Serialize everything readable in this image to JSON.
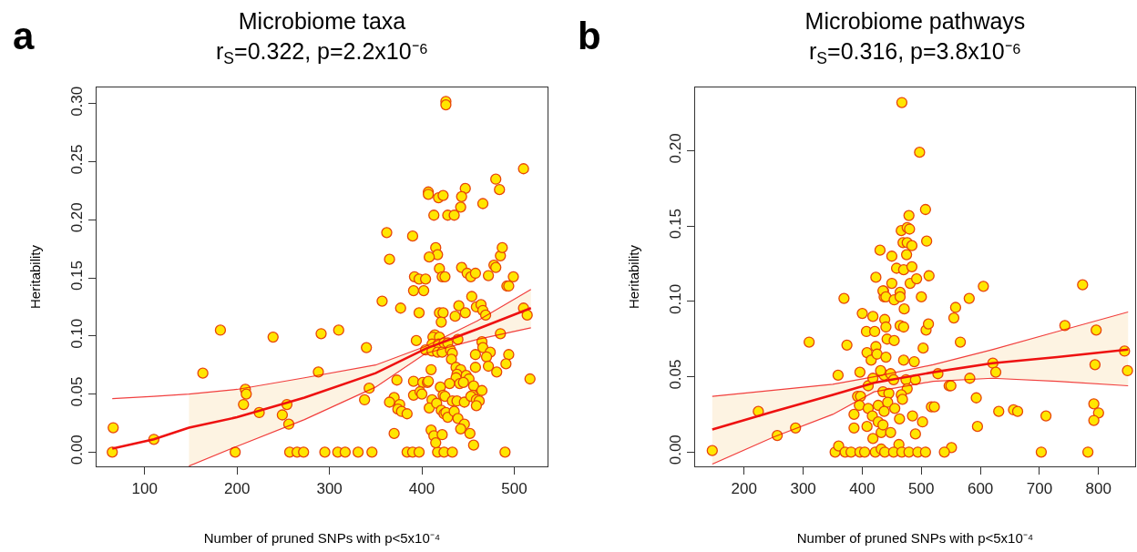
{
  "chart_data": [
    {
      "type": "scatter",
      "title": "Microbiome taxa",
      "subtitle": "r$_{S}$=0.322, p=2.2x10⁻⁶",
      "xlabel": "Number of pruned SNPs with p<5x10⁻⁴",
      "ylabel": "Heritability",
      "annotations": [
        "a"
      ],
      "xlim": [
        48,
        536
      ],
      "xticks": [
        100,
        200,
        300,
        400,
        500
      ],
      "ylim": [
        -0.0123,
        0.314
      ],
      "yticks": [
        {
          "value": 0,
          "label": "0.00"
        },
        {
          "value": 0.05,
          "label": "0.05"
        },
        {
          "value": 0.1,
          "label": "0.10"
        },
        {
          "value": 0.15,
          "label": "0.15"
        },
        {
          "value": 0.2,
          "label": "0.20"
        },
        {
          "value": 0.25,
          "label": "0.25"
        },
        {
          "value": 0.3,
          "label": "0.30"
        }
      ],
      "series": [
        {
          "marker": "circle",
          "color": "#ffe600",
          "x": [
            65,
            66,
            110,
            163,
            182,
            198,
            209,
            210,
            207,
            224,
            239,
            249,
            254,
            256,
            257,
            265,
            272,
            295,
            309,
            317,
            331,
            346,
            384,
            390,
            397,
            417,
            424,
            433,
            490,
            426,
            426,
            510,
            480,
            484,
            407,
            407,
            418,
            423,
            447,
            443,
            442,
            466,
            413,
            428,
            435,
            362,
            390,
            365,
            415,
            417,
            408,
            419,
            422,
            425,
            443,
            449,
            453,
            458,
            472,
            478,
            480,
            485,
            487,
            392,
            397,
            404,
            391,
            402,
            492,
            494,
            499,
            357,
            377,
            397,
            419,
            423,
            421,
            440,
            436,
            447,
            454,
            459,
            464,
            466,
            469,
            510,
            514,
            291,
            310,
            340,
            394,
            414,
            412,
            419,
            411,
            418,
            424,
            428,
            404,
            411,
            417,
            422,
            431,
            433,
            439,
            432,
            465,
            466,
            474,
            470,
            472,
            485,
            458,
            494,
            491,
            481,
            288,
            410,
            437,
            442,
            438,
            437,
            448,
            451,
            458,
            373,
            391,
            401,
            406,
            407,
            430,
            441,
            445,
            456,
            455,
            420,
            465,
            517,
            343,
            338,
            370,
            365,
            376,
            374,
            378,
            384,
            391,
            398,
            400,
            411,
            408,
            416,
            423,
            425,
            433,
            438,
            446,
            453,
            459,
            462,
            459,
            421,
            424,
            426,
            428,
            435,
            439,
            446,
            442,
            452,
            410,
            413,
            415,
            422,
            370,
            456
          ],
          "values": [
            0,
            0.021,
            0.011,
            0.068,
            0.105,
            0,
            0.054,
            0.05,
            0.041,
            0.034,
            0.099,
            0.032,
            0.041,
            0.024,
            0,
            0,
            0,
            0,
            0,
            0,
            0,
            0,
            0,
            0,
            0,
            0,
            0,
            0,
            0,
            0.302,
            0.299,
            0.244,
            0.235,
            0.226,
            0.224,
            0.222,
            0.219,
            0.221,
            0.227,
            0.22,
            0.211,
            0.214,
            0.204,
            0.204,
            0.204,
            0.189,
            0.186,
            0.166,
            0.176,
            0.17,
            0.168,
            0.158,
            0.151,
            0.151,
            0.159,
            0.154,
            0.151,
            0.154,
            0.152,
            0.161,
            0.159,
            0.169,
            0.176,
            0.151,
            0.149,
            0.149,
            0.139,
            0.139,
            0.143,
            0.143,
            0.151,
            0.13,
            0.124,
            0.12,
            0.12,
            0.12,
            0.112,
            0.126,
            0.117,
            0.12,
            0.134,
            0.125,
            0.127,
            0.122,
            0.118,
            0.124,
            0.118,
            0.102,
            0.105,
            0.09,
            0.096,
            0.101,
            0.099,
            0.099,
            0.093,
            0.093,
            0.094,
            0.094,
            0.088,
            0.087,
            0.086,
            0.086,
            0.088,
            0.085,
            0.097,
            0.08,
            0.095,
            0.09,
            0.086,
            0.082,
            0.074,
            0.102,
            0.084,
            0.084,
            0.076,
            0.069,
            0.069,
            0.071,
            0.073,
            0.071,
            0.067,
            0.064,
            0.066,
            0.063,
            0.073,
            0.062,
            0.061,
            0.06,
            0.06,
            0.061,
            0.059,
            0.059,
            0.06,
            0.057,
            0.049,
            0.056,
            0.053,
            0.063,
            0.055,
            0.045,
            0.047,
            0.043,
            0.041,
            0.037,
            0.035,
            0.033,
            0.049,
            0.052,
            0.05,
            0.045,
            0.038,
            0.042,
            0.049,
            0.048,
            0.044,
            0.044,
            0.043,
            0.048,
            0.045,
            0.044,
            0.04,
            0.036,
            0.033,
            0.034,
            0.03,
            0.035,
            0.029,
            0.024,
            0.02,
            0.016,
            0.019,
            0.014,
            0.008,
            0.015,
            0.016,
            0.006
          ]
        },
        {
          "type": "line",
          "color": "#ee1111",
          "x": [
            65,
            110,
            148,
            200,
            273,
            350,
            404,
            460,
            518
          ],
          "values": [
            0.046,
            0.048,
            0.05,
            0.054,
            0.064,
            0.075,
            0.091,
            0.113,
            0.14
          ]
        },
        {
          "type": "line",
          "color": "#ee1111",
          "x": [
            148,
            200,
            273,
            350,
            404,
            460,
            518
          ],
          "values": [
            -0.012,
            0.005,
            0.028,
            0.056,
            0.085,
            0.097,
            0.107
          ]
        },
        {
          "type": "line",
          "color": "#ee1111",
          "x": [
            65,
            110,
            148,
            200,
            273,
            350,
            404,
            460,
            518
          ],
          "values": [
            0.003,
            0.011,
            0.021,
            0.03,
            0.047,
            0.068,
            0.089,
            0.106,
            0.124
          ],
          "lower": [
            null,
            null,
            -0.012,
            0.005,
            0.028,
            0.056,
            0.085,
            0.097,
            0.107
          ],
          "upper": [
            null,
            null,
            0.05,
            0.054,
            0.064,
            0.075,
            0.091,
            0.113,
            0.14
          ]
        }
      ]
    },
    {
      "type": "scatter",
      "title": "Microbiome pathways",
      "subtitle": "r$_{S}$=0.316, p=3.8x10⁻⁶",
      "xlabel": "Number of pruned SNPs with p<5x10⁻⁴",
      "ylabel": "Heritability",
      "annotations": [
        "b"
      ],
      "xlim": [
        117,
        862
      ],
      "xticks": [
        200,
        300,
        400,
        500,
        600,
        700,
        800
      ],
      "ylim": [
        -0.0095,
        0.242
      ],
      "yticks": [
        {
          "value": 0,
          "label": "0.00"
        },
        {
          "value": 0.05,
          "label": "0.05"
        },
        {
          "value": 0.1,
          "label": "0.10"
        },
        {
          "value": 0.15,
          "label": "0.15"
        },
        {
          "value": 0.2,
          "label": "0.20"
        }
      ],
      "series": [
        {
          "marker": "circle",
          "color": "#ffe600",
          "x": [
            146,
            224,
            256,
            287,
            310,
            369,
            374,
            359,
            396,
            354,
            360,
            371,
            381,
            386,
            386,
            392,
            397,
            395,
            400,
            418,
            407,
            421,
            408,
            415,
            423,
            425,
            423,
            430,
            436,
            437,
            410,
            418,
            432,
            437,
            410,
            408,
            417,
            427,
            432,
            427,
            418,
            396,
            404,
            422,
            432,
            438,
            467,
            497,
            507,
            479,
            466,
            476,
            480,
            509,
            469,
            476,
            484,
            475,
            450,
            458,
            470,
            484,
            450,
            481,
            492,
            513,
            435,
            440,
            454,
            464,
            464,
            500,
            605,
            773,
            471,
            558,
            555,
            581,
            438,
            440,
            464,
            470,
            508,
            512,
            743,
            796,
            442,
            454,
            440,
            566,
            503,
            844,
            849,
            794,
            470,
            488,
            431,
            448,
            453,
            528,
            621,
            626,
            474,
            490,
            476,
            582,
            547,
            550,
            435,
            445,
            466,
            468,
            443,
            593,
            517,
            522,
            437,
            455,
            463,
            485,
            631,
            656,
            663,
            711,
            792,
            800,
            792,
            502,
            595,
            435,
            448,
            490,
            462,
            551,
            539,
            453,
            467,
            479,
            494,
            507,
            703,
            782
          ],
          "values": [
            0.001,
            0.027,
            0.011,
            0.016,
            0.073,
            0.102,
            0.071,
            0.051,
            0.053,
            0,
            0.004,
            0,
            0,
            0.016,
            0.025,
            0.037,
            0.037,
            0.031,
            0.092,
            0.09,
            0.08,
            0.08,
            0.066,
            0.061,
            0.07,
            0.065,
            0.116,
            0.134,
            0.107,
            0.103,
            0.044,
            0.049,
            0.053,
            0.051,
            0.029,
            0.017,
            0.024,
            0.031,
            0.013,
            0.02,
            0.009,
            0,
            0,
            0,
            0.002,
            0,
            0.232,
            0.199,
            0.161,
            0.157,
            0.147,
            0.149,
            0.148,
            0.14,
            0.139,
            0.139,
            0.137,
            0.131,
            0.13,
            0.122,
            0.121,
            0.123,
            0.112,
            0.112,
            0.115,
            0.117,
            0.107,
            0.103,
            0.101,
            0.106,
            0.103,
            0.103,
            0.11,
            0.111,
            0.095,
            0.096,
            0.089,
            0.102,
            0.088,
            0.083,
            0.084,
            0.083,
            0.081,
            0.085,
            0.084,
            0.081,
            0.075,
            0.074,
            0.063,
            0.073,
            0.069,
            0.067,
            0.054,
            0.058,
            0.061,
            0.06,
            0.054,
            0.052,
            0.048,
            0.052,
            0.059,
            0.053,
            0.048,
            0.048,
            0.042,
            0.049,
            0.044,
            0.044,
            0.04,
            0.039,
            0.038,
            0.035,
            0.033,
            0.036,
            0.03,
            0.03,
            0.027,
            0.029,
            0.022,
            0.024,
            0.027,
            0.028,
            0.027,
            0.024,
            0.032,
            0.026,
            0.021,
            0.02,
            0.017,
            0.018,
            0.013,
            0.012,
            0.005,
            0.003,
            0,
            0,
            0,
            0,
            0,
            0,
            0,
            0
          ]
        },
        {
          "type": "line",
          "color": "#ee1111",
          "x": [
            146,
            250,
            350,
            420,
            520,
            620,
            730,
            850
          ],
          "values": [
            -0.008,
            0.01,
            0.025,
            0.04,
            0.047,
            0.049,
            0.047,
            0.044
          ]
        },
        {
          "type": "line",
          "color": "#ee1111",
          "x": [
            146,
            250,
            350,
            420,
            520,
            620,
            730,
            850
          ],
          "values": [
            0.037,
            0.041,
            0.045,
            0.05,
            0.058,
            0.068,
            0.08,
            0.093
          ]
        },
        {
          "type": "line",
          "color": "#ee1111",
          "x": [
            146,
            250,
            350,
            420,
            520,
            620,
            730,
            850
          ],
          "values": [
            0.015,
            0.027,
            0.038,
            0.046,
            0.053,
            0.059,
            0.063,
            0.068
          ],
          "lower": [
            -0.008,
            0.01,
            0.025,
            0.04,
            0.047,
            0.049,
            0.047,
            0.044
          ],
          "upper": [
            0.037,
            0.041,
            0.045,
            0.05,
            0.058,
            0.068,
            0.08,
            0.093
          ]
        }
      ]
    }
  ]
}
